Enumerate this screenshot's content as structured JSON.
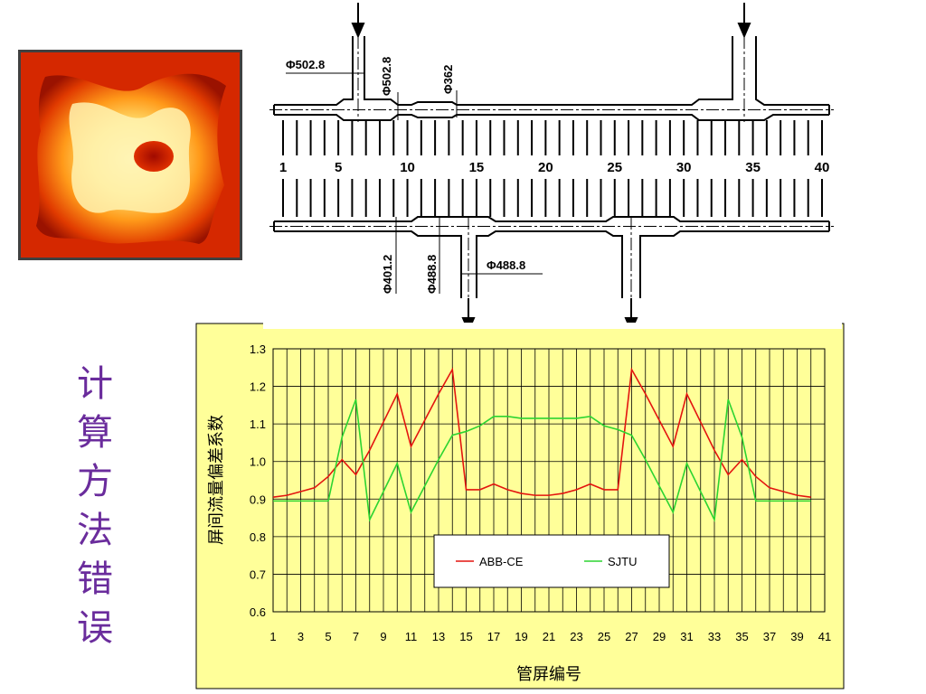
{
  "side_title": [
    "计",
    "算",
    "方",
    "法",
    "错",
    "误"
  ],
  "schematic": {
    "dims": {
      "d_top_left_h": "Φ502.8",
      "d_top_left_v": "Φ502.8",
      "d_top_mid": "Φ362",
      "d_bot_left": "Φ401.2",
      "d_bot_mid": "Φ488.8",
      "d_bot_h": "Φ488.8"
    },
    "tube_numbers": [
      "1",
      "5",
      "10",
      "15",
      "20",
      "25",
      "30",
      "35",
      "40"
    ]
  },
  "chart_data": {
    "type": "line",
    "ylabel": "屏间流量偏差系数",
    "xlabel": "管屏编号",
    "xlim": [
      1,
      41
    ],
    "ylim": [
      0.6,
      1.3
    ],
    "x_ticks": [
      "1",
      "3",
      "5",
      "7",
      "9",
      "11",
      "13",
      "15",
      "17",
      "19",
      "21",
      "23",
      "25",
      "27",
      "29",
      "31",
      "33",
      "35",
      "37",
      "39",
      "41"
    ],
    "y_ticks": [
      "0.6",
      "0.7",
      "0.8",
      "0.9",
      "1.0",
      "1.1",
      "1.2",
      "1.3"
    ],
    "grid": true,
    "legend_placement": "bottom-center",
    "x": [
      1,
      2,
      3,
      4,
      5,
      6,
      7,
      8,
      9,
      10,
      11,
      12,
      13,
      14,
      15,
      16,
      17,
      18,
      19,
      20,
      21,
      22,
      23,
      24,
      25,
      26,
      27,
      28,
      29,
      30,
      31,
      32,
      33,
      34,
      35,
      36,
      37,
      38,
      39,
      40
    ],
    "series": [
      {
        "name": "ABB-CE",
        "color": "#e3140f",
        "values": [
          0.905,
          0.91,
          0.92,
          0.93,
          0.96,
          1.005,
          0.965,
          1.03,
          1.105,
          1.18,
          1.04,
          1.11,
          1.18,
          1.245,
          0.925,
          0.925,
          0.94,
          0.925,
          0.915,
          0.91,
          0.91,
          0.915,
          0.925,
          0.94,
          0.925,
          0.925,
          1.245,
          1.18,
          1.11,
          1.04,
          1.18,
          1.105,
          1.03,
          0.965,
          1.005,
          0.96,
          0.93,
          0.92,
          0.91,
          0.905
        ]
      },
      {
        "name": "SJTU",
        "color": "#2cd431",
        "values": [
          0.895,
          0.895,
          0.895,
          0.895,
          0.895,
          1.065,
          1.165,
          0.845,
          0.92,
          0.995,
          0.865,
          0.935,
          1.005,
          1.07,
          1.08,
          1.095,
          1.12,
          1.12,
          1.115,
          1.115,
          1.115,
          1.115,
          1.115,
          1.12,
          1.095,
          1.085,
          1.07,
          1.005,
          0.935,
          0.865,
          0.995,
          0.92,
          0.845,
          1.165,
          1.065,
          0.895,
          0.895,
          0.895,
          0.895,
          0.895
        ]
      }
    ]
  },
  "colors": {
    "plot_bg": "#ffff99",
    "title_purple": "#6a2c9c"
  }
}
